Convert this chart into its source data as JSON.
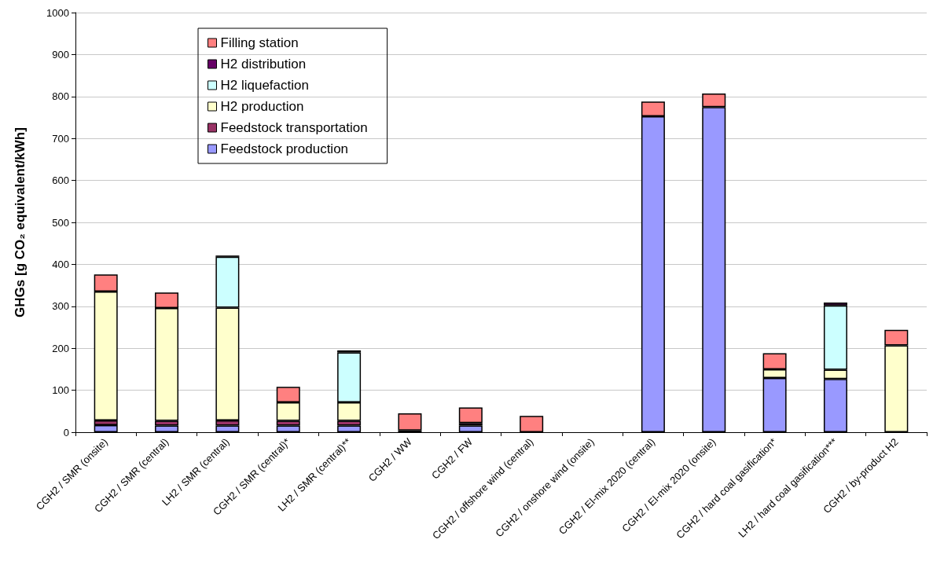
{
  "chart_data": {
    "type": "bar",
    "stacked": true,
    "ylabel": "GHGs [g CO₂ equivalent/kWh]",
    "categories": [
      "CGH2 / SMR (onsite)",
      "CGH2 / SMR (central)",
      "LH2 / SMR (central)",
      "CGH2 / SMR (central)*",
      "LH2 / SMR (central)**",
      "CGH2 / WW",
      "CGH2 / FW",
      "CGH2 / offshore wind (central)",
      "CGH2 / onshore wind (onsite)",
      "CGH2 / El-mix 2020 (central)",
      "CGH2 / El-mix 2020 (onsite)",
      "CGH2 / hard coal gasification*",
      "LH2 / hard coal gasification***",
      "CGH2 / by-product H2"
    ],
    "series": [
      {
        "name": "Feedstock production",
        "color": "#9999ff",
        "values": [
          17,
          16,
          16,
          16,
          16,
          null,
          16,
          null,
          null,
          753,
          775,
          129,
          127,
          null
        ]
      },
      {
        "name": "Feedstock transportation",
        "color": "#993366",
        "values": [
          11,
          11,
          12,
          11,
          11,
          null,
          null,
          null,
          null,
          null,
          null,
          null,
          null,
          null
        ]
      },
      {
        "name": "H2 production",
        "color": "#ffffcc",
        "values": [
          307,
          269,
          269,
          44,
          44,
          null,
          null,
          null,
          null,
          null,
          null,
          21,
          22,
          207
        ]
      },
      {
        "name": "H2 liquefaction",
        "color": "#ccffff",
        "values": [
          null,
          null,
          121,
          null,
          119,
          null,
          null,
          null,
          null,
          null,
          null,
          null,
          153,
          null
        ]
      },
      {
        "name": "H2 distribution",
        "color": "#660066",
        "values": [
          null,
          null,
          3,
          null,
          5,
          4,
          6,
          null,
          null,
          null,
          null,
          null,
          7,
          null
        ]
      },
      {
        "name": "Filling station",
        "color": "#ff8080",
        "values": [
          41,
          37,
          null,
          37,
          null,
          41,
          37,
          39,
          null,
          35,
          32,
          38,
          null,
          37
        ]
      }
    ],
    "ylim": [
      0,
      1000
    ],
    "yticks": [
      0,
      100,
      200,
      300,
      400,
      500,
      600,
      700,
      800,
      900,
      1000
    ],
    "grid": "y",
    "legend": "top left"
  }
}
